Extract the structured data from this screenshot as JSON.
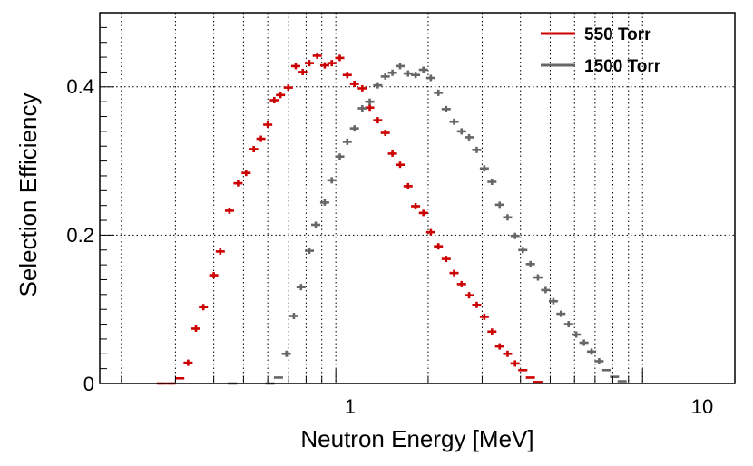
{
  "chart_data": {
    "type": "scatter",
    "title": "",
    "xlabel": "Neutron Energy [MeV]",
    "ylabel": "Selection Efficiency",
    "xscale": "log",
    "xlim": [
      0.17,
      20
    ],
    "ylim": [
      0,
      0.5
    ],
    "x_tick_labels": [
      "1",
      "10"
    ],
    "y_tick_labels": [
      "0",
      "0.2",
      "0.4"
    ],
    "grid": true,
    "legend_position": "top-right",
    "series": [
      {
        "name": "550 Torr",
        "color": "#cc0000",
        "x": [
          0.27,
          0.29,
          0.31,
          0.33,
          0.35,
          0.37,
          0.4,
          0.42,
          0.45,
          0.48,
          0.51,
          0.54,
          0.57,
          0.6,
          0.63,
          0.66,
          0.7,
          0.74,
          0.78,
          0.82,
          0.87,
          0.92,
          0.97,
          1.03,
          1.09,
          1.15,
          1.22,
          1.29,
          1.37,
          1.45,
          1.53,
          1.62,
          1.72,
          1.82,
          1.93,
          2.04,
          2.16,
          2.29,
          2.43,
          2.57,
          2.72,
          2.88,
          3.05,
          3.23,
          3.42,
          3.63,
          3.84,
          4.07,
          4.31,
          4.56
        ],
        "y": [
          0.0,
          0.0,
          0.007,
          0.028,
          0.074,
          0.103,
          0.146,
          0.178,
          0.233,
          0.27,
          0.284,
          0.316,
          0.33,
          0.349,
          0.382,
          0.389,
          0.399,
          0.428,
          0.42,
          0.432,
          0.442,
          0.429,
          0.432,
          0.439,
          0.416,
          0.404,
          0.398,
          0.372,
          0.355,
          0.338,
          0.31,
          0.295,
          0.266,
          0.239,
          0.23,
          0.204,
          0.185,
          0.168,
          0.149,
          0.134,
          0.119,
          0.106,
          0.09,
          0.07,
          0.05,
          0.04,
          0.027,
          0.018,
          0.008,
          0.002
        ]
      },
      {
        "name": "1500 Torr",
        "color": "#666666",
        "x": [
          0.46,
          0.61,
          0.65,
          0.69,
          0.73,
          0.77,
          0.82,
          0.86,
          0.92,
          0.97,
          1.03,
          1.09,
          1.15,
          1.22,
          1.29,
          1.37,
          1.45,
          1.53,
          1.62,
          1.72,
          1.82,
          1.93,
          2.04,
          2.16,
          2.29,
          2.43,
          2.57,
          2.72,
          2.88,
          3.05,
          3.23,
          3.42,
          3.63,
          3.84,
          4.07,
          4.31,
          4.56,
          4.83,
          5.12,
          5.42,
          5.74,
          6.08,
          6.44,
          6.82,
          7.22,
          7.65,
          8.1,
          8.58
        ],
        "y": [
          0.0,
          0.0,
          0.008,
          0.04,
          0.091,
          0.13,
          0.179,
          0.214,
          0.244,
          0.274,
          0.306,
          0.326,
          0.344,
          0.371,
          0.38,
          0.402,
          0.414,
          0.419,
          0.428,
          0.418,
          0.416,
          0.423,
          0.412,
          0.392,
          0.37,
          0.353,
          0.34,
          0.332,
          0.315,
          0.29,
          0.272,
          0.241,
          0.224,
          0.199,
          0.18,
          0.161,
          0.143,
          0.126,
          0.111,
          0.094,
          0.08,
          0.066,
          0.055,
          0.043,
          0.03,
          0.018,
          0.009,
          0.003
        ]
      }
    ]
  }
}
